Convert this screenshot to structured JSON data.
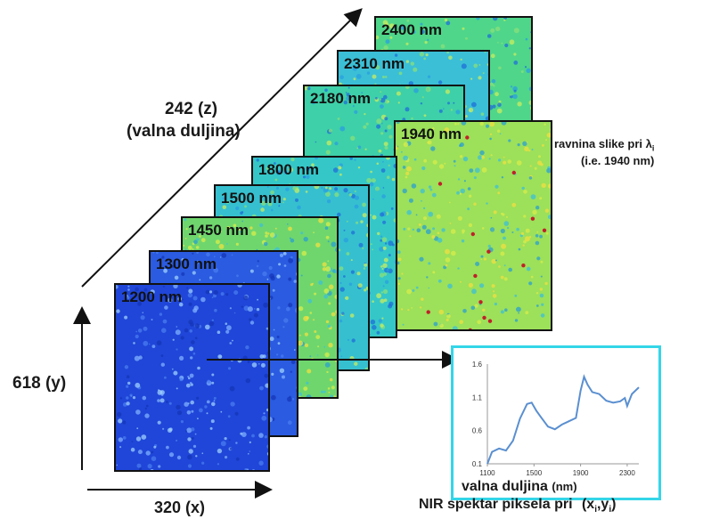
{
  "axes": {
    "z_label": "242 (z)",
    "z_sublabel": "(valna duljina)",
    "y_label": "618 (y)",
    "x_label": "320 (x)"
  },
  "layers": [
    {
      "label": "2400 nm",
      "color": "#4fd68a"
    },
    {
      "label": "2310 nm",
      "color": "#3bbfd6"
    },
    {
      "label": "2180 nm",
      "color": "#3ed0a8"
    },
    {
      "label": "1940 nm",
      "color": "#9de05a"
    },
    {
      "label": "1800 nm",
      "color": "#35c7c8"
    },
    {
      "label": "1500 nm",
      "color": "#36c0cf"
    },
    {
      "label": "1450 nm",
      "color": "#6fd66e"
    },
    {
      "label": "1300 nm",
      "color": "#2a5be0"
    },
    {
      "label": "1200 nm",
      "color": "#1f46d8"
    }
  ],
  "image_plane": {
    "line1": "ravnina slike pri λ",
    "subscript": "i",
    "line2": "(i.e. 1940 nm)"
  },
  "spectrum": {
    "y_ticks": [
      "1.6",
      "1.1",
      "0.6",
      "0.1"
    ],
    "x_ticks": [
      "1100",
      "1500",
      "1900",
      "2300"
    ],
    "xlabel_main": "valna duljina",
    "xlabel_unit": "(nm)",
    "caption_main": "NIR  spektar piksela pri",
    "caption_coords": "(x",
    "caption_sub1": "i",
    "caption_mid": ",y",
    "caption_sub2": "i",
    "caption_end": ")",
    "line_color": "#5a8fd0",
    "border_color": "#33d6e8",
    "points": [
      [
        1100,
        0.1
      ],
      [
        1140,
        0.28
      ],
      [
        1200,
        0.33
      ],
      [
        1260,
        0.3
      ],
      [
        1320,
        0.45
      ],
      [
        1380,
        0.78
      ],
      [
        1440,
        1.0
      ],
      [
        1480,
        1.02
      ],
      [
        1520,
        0.9
      ],
      [
        1560,
        0.8
      ],
      [
        1620,
        0.66
      ],
      [
        1680,
        0.62
      ],
      [
        1740,
        0.69
      ],
      [
        1800,
        0.74
      ],
      [
        1860,
        0.79
      ],
      [
        1900,
        1.2
      ],
      [
        1930,
        1.41
      ],
      [
        1960,
        1.29
      ],
      [
        2000,
        1.18
      ],
      [
        2060,
        1.15
      ],
      [
        2120,
        1.05
      ],
      [
        2180,
        1.02
      ],
      [
        2240,
        1.04
      ],
      [
        2280,
        1.09
      ],
      [
        2300,
        0.97
      ],
      [
        2340,
        1.15
      ],
      [
        2400,
        1.25
      ]
    ]
  }
}
